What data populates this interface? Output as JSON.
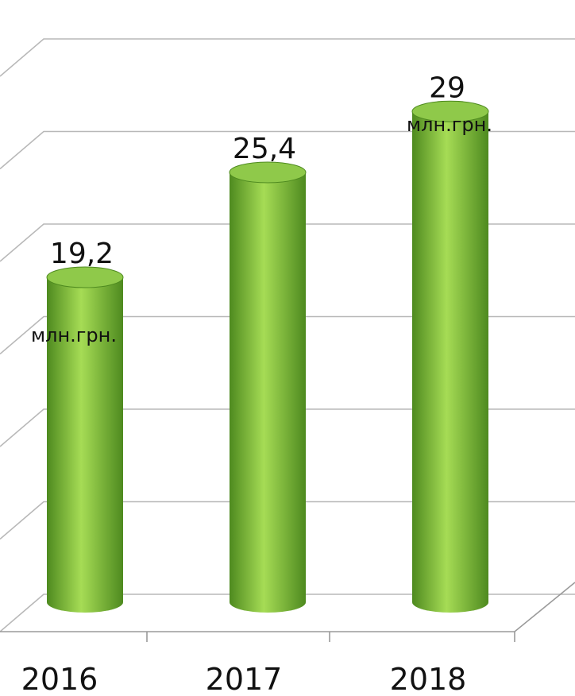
{
  "chart_data": {
    "type": "bar",
    "style": "3d-cylinder",
    "categories": [
      "2016",
      "2017",
      "2018"
    ],
    "values": [
      19.2,
      25.4,
      29
    ],
    "value_labels": [
      "19,2",
      "25,4",
      "29"
    ],
    "unit_labels": [
      "млн.грн.",
      "",
      "млн.грн."
    ],
    "ylim": [
      0,
      32
    ],
    "grid": true,
    "colors": {
      "bar_body": "#76b83a",
      "bar_light": "#a6dc55",
      "bar_dark": "#4e8a1f",
      "bar_top": "#8fc94a",
      "grid": "#b8b8b8"
    }
  }
}
